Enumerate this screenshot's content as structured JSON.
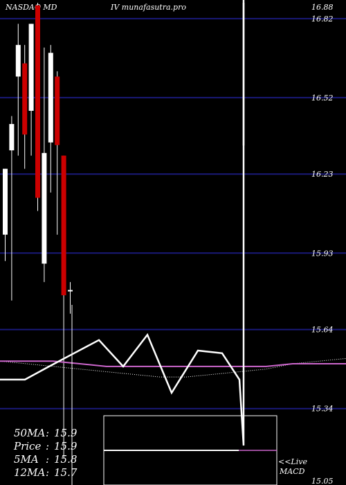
{
  "chart_data": {
    "type": "candlestick",
    "title_left": "NASDAQ MD",
    "title_right": "IV munafasutra.pro",
    "y_ticks": [
      "16.88",
      "16.82",
      "16.52",
      "16.23",
      "15.93",
      "15.64",
      "15.34",
      "15.05"
    ],
    "ylim": [
      15.05,
      16.88
    ],
    "grid": true,
    "colors": {
      "background": "#000000",
      "grid": "#1a1a7a",
      "up": "#ffffff",
      "down": "#cc0000",
      "ma": "#cc66cc",
      "text": "#ffffff"
    },
    "candles": [
      {
        "o": 16.0,
        "h": 16.25,
        "l": 15.9,
        "c": 16.25,
        "dir": "up"
      },
      {
        "o": 16.32,
        "h": 16.45,
        "l": 15.75,
        "c": 16.42,
        "dir": "up"
      },
      {
        "o": 16.6,
        "h": 16.8,
        "l": 16.3,
        "c": 16.72,
        "dir": "up"
      },
      {
        "o": 16.65,
        "h": 16.72,
        "l": 16.25,
        "c": 16.38,
        "dir": "down"
      },
      {
        "o": 16.47,
        "h": 16.8,
        "l": 16.3,
        "c": 16.8,
        "dir": "up"
      },
      {
        "o": 16.87,
        "h": 16.88,
        "l": 16.09,
        "c": 16.14,
        "dir": "down"
      },
      {
        "o": 15.89,
        "h": 16.71,
        "l": 15.82,
        "c": 16.31,
        "dir": "up"
      },
      {
        "o": 16.35,
        "h": 16.72,
        "l": 16.16,
        "c": 16.69,
        "dir": "up"
      },
      {
        "o": 16.6,
        "h": 16.62,
        "l": 16.0,
        "c": 16.34,
        "dir": "down"
      },
      {
        "o": 16.3,
        "h": 16.3,
        "l": 15.15,
        "c": 15.77,
        "dir": "down"
      },
      {
        "o": 15.79,
        "h": 15.82,
        "l": 15.7,
        "c": 15.79,
        "dir": "up"
      }
    ],
    "price_line": [
      15.45,
      15.45,
      15.5,
      15.55,
      15.6,
      15.5,
      15.62,
      15.4,
      15.56,
      15.55,
      15.45,
      15.2,
      16.88
    ],
    "ma_line": [
      15.52,
      15.52,
      15.52,
      15.51,
      15.5,
      15.5,
      15.5,
      15.5,
      15.5,
      15.5,
      15.5,
      15.51,
      15.51,
      15.51
    ],
    "dotted_ma_line": [
      15.52,
      15.51,
      15.5,
      15.49,
      15.48,
      15.47,
      15.46,
      15.46,
      15.47,
      15.48,
      15.49,
      15.51,
      15.52,
      15.53
    ],
    "stats": [
      {
        "label": "50MA",
        "value": "15.9"
      },
      {
        "label": "Price",
        "value": "15.9"
      },
      {
        "label": "5MA",
        "value": "15.8"
      },
      {
        "label": "12MA",
        "value": "15.7"
      }
    ],
    "macd_label_1": "<<Live",
    "macd_label_2": "MACD"
  }
}
